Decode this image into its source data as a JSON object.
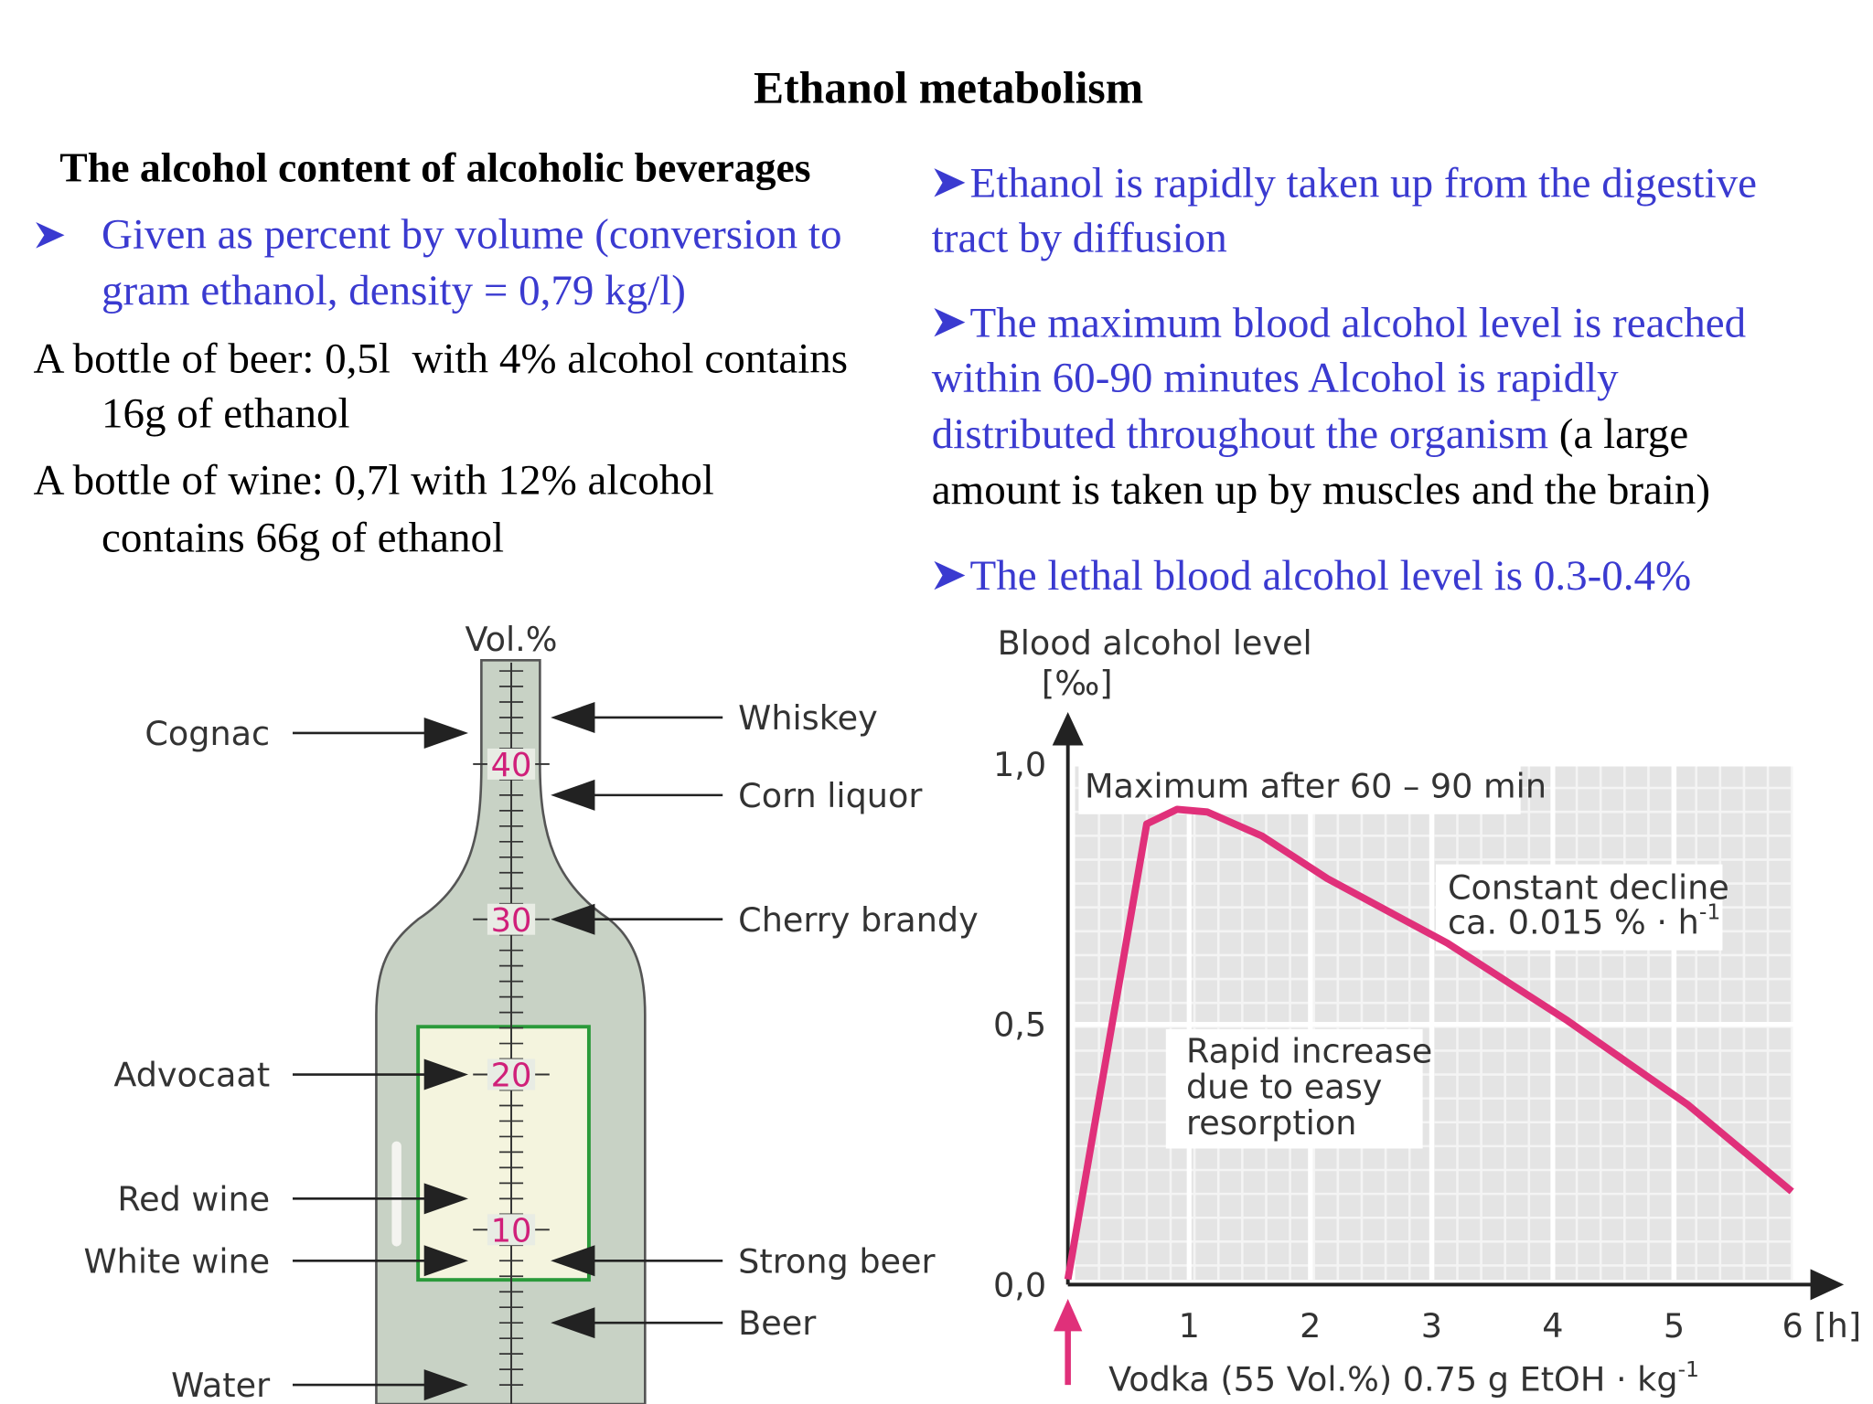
{
  "title": "Ethanol metabolism",
  "left": {
    "heading": "The alcohol content of alcoholic beverages",
    "bullet_lines": [
      "Given as percent by volume (conversion to",
      "gram ethanol, density = 0,79 kg/l)"
    ],
    "paragraphs": [
      [
        "A bottle of beer: 0,5l  with 4% alcohol contains",
        "16g of ethanol"
      ],
      [
        "A bottle of wine: 0,7l with 12% alcohol",
        "contains 66g of ethanol"
      ]
    ]
  },
  "right": {
    "bullets": [
      {
        "lines": [
          "Ethanol is rapidly taken up from the digestive",
          "tract by diffusion"
        ]
      },
      {
        "lines": [
          "The maximum blood alcohol level is reached",
          "within 60-90 minutes Alcohol is rapidly",
          "distributed throughout the organism"
        ],
        "note_lines": [
          "(a large",
          "amount is taken up by muscles and the brain)"
        ]
      },
      {
        "lines": [
          "The lethal blood alcohol level is 0.3-0.4%"
        ]
      }
    ]
  },
  "bottle_figure": {
    "axis_label": "Vol.%",
    "ylim": [
      0,
      46.5
    ],
    "yticks": [
      10,
      20,
      30,
      40
    ],
    "tick_color": "#d0207a",
    "beverages": [
      {
        "name": "Cognac",
        "value": 42,
        "side": "left"
      },
      {
        "name": "Whiskey",
        "value": 43,
        "side": "right"
      },
      {
        "name": "Corn liquor",
        "value": 38,
        "side": "right"
      },
      {
        "name": "Cherry brandy",
        "value": 30,
        "side": "right"
      },
      {
        "name": "Advocaat",
        "value": 20,
        "side": "left"
      },
      {
        "name": "Red wine",
        "value": 12,
        "side": "left"
      },
      {
        "name": "White wine",
        "value": 8,
        "side": "left"
      },
      {
        "name": "Strong beer",
        "value": 8,
        "side": "right"
      },
      {
        "name": "Beer",
        "value": 4,
        "side": "right"
      },
      {
        "name": "Water",
        "value": 0,
        "side": "left"
      }
    ]
  },
  "blood_chart": {
    "type": "line",
    "y_label_lines": [
      "Blood alcohol level",
      "[‰]"
    ],
    "xlim": [
      0,
      6.4
    ],
    "ylim": [
      0,
      1.1
    ],
    "xticks": [
      1,
      2,
      3,
      4,
      5,
      {
        "value": 6,
        "label": "6 [h]"
      }
    ],
    "yticks": [
      {
        "value": 0,
        "label": "0,0"
      },
      {
        "value": 0.5,
        "label": "0,5"
      },
      {
        "value": 1,
        "label": "1,0"
      }
    ],
    "grid": true,
    "color": "#e0307a",
    "x": [
      0,
      0.65,
      0.9,
      1.15,
      1.6,
      2.14,
      3.13,
      4.12,
      5.11,
      5.97
    ],
    "values": [
      0.01,
      0.885,
      0.913,
      0.908,
      0.862,
      0.78,
      0.656,
      0.507,
      0.346,
      0.179
    ],
    "annotations": {
      "maximum": "Maximum after 60 – 90 min",
      "decline_lines": [
        "Constant decline",
        "ca. 0.015 % · h"
      ],
      "decline_sup": "-1",
      "increase_lines": [
        "Rapid increase",
        "due to easy",
        "resorption"
      ]
    },
    "x_label": "Vodka (55 Vol.%) 0.75 g EtOH · kg",
    "x_label_sup": "-1"
  }
}
